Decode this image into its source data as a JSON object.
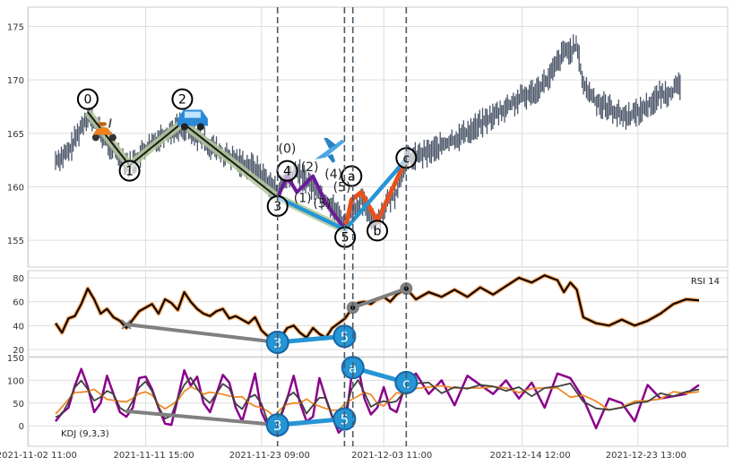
{
  "chart_data": {
    "type": "candlestick",
    "x_tick_labels": [
      "2021-11-02 11:00",
      "2021-11-11 15:00",
      "2021-11-23 09:00",
      "2021-12-03 11:00",
      "2021-12-14 12:00",
      "2021-12-23 13:00"
    ],
    "price_panel": {
      "yticks": [
        155,
        160,
        165,
        170,
        175
      ],
      "ylim": [
        152.5,
        176.8
      ],
      "price_path": [
        [
          0,
          162.5
        ],
        [
          0.02,
          163.2
        ],
        [
          0.05,
          166.8
        ],
        [
          0.08,
          164.2
        ],
        [
          0.115,
          162.0
        ],
        [
          0.14,
          163.5
        ],
        [
          0.165,
          164.8
        ],
        [
          0.197,
          165.8
        ],
        [
          0.23,
          164.3
        ],
        [
          0.26,
          163.0
        ],
        [
          0.29,
          162.2
        ],
        [
          0.31,
          161.8
        ],
        [
          0.33,
          160.5
        ],
        [
          0.345,
          159.5
        ],
        [
          0.36,
          160.8
        ],
        [
          0.375,
          161.5
        ],
        [
          0.4,
          160.0
        ],
        [
          0.42,
          158.8
        ],
        [
          0.435,
          157.8
        ],
        [
          0.45,
          156.4
        ],
        [
          0.46,
          157.8
        ],
        [
          0.475,
          158.7
        ],
        [
          0.49,
          157.2
        ],
        [
          0.5,
          156.8
        ],
        [
          0.515,
          158.5
        ],
        [
          0.53,
          159.5
        ],
        [
          0.545,
          162.6
        ],
        [
          0.57,
          163.0
        ],
        [
          0.6,
          163.8
        ],
        [
          0.625,
          164.6
        ],
        [
          0.65,
          165.5
        ],
        [
          0.68,
          166.6
        ],
        [
          0.71,
          167.8
        ],
        [
          0.74,
          168.8
        ],
        [
          0.765,
          170.0
        ],
        [
          0.79,
          172.6
        ],
        [
          0.81,
          173.0
        ],
        [
          0.815,
          171.5
        ],
        [
          0.82,
          169.5
        ],
        [
          0.84,
          168.0
        ],
        [
          0.86,
          167.4
        ],
        [
          0.88,
          166.6
        ],
        [
          0.9,
          166.8
        ],
        [
          0.92,
          167.6
        ],
        [
          0.94,
          168.6
        ],
        [
          0.96,
          169.0
        ],
        [
          0.97,
          169.4
        ]
      ],
      "waves": [
        {
          "name": "primary",
          "color": "#1a1a1a",
          "halo": "#b5c99a",
          "points": [
            [
              0.05,
              167.0
            ],
            [
              0.115,
              162.0
            ],
            [
              0.197,
              166.0
            ],
            [
              0.345,
              159.0
            ],
            [
              0.45,
              156.0
            ]
          ],
          "labels": [
            "0",
            "1",
            "2",
            "3",
            "5"
          ]
        },
        {
          "name": "sub-minor",
          "color": "#6a1b9a",
          "halo": "#ffffff",
          "points": [
            [
              0.345,
              159.0
            ],
            [
              0.36,
              161.0
            ],
            [
              0.375,
              159.5
            ],
            [
              0.4,
              161.0
            ],
            [
              0.42,
              158.5
            ],
            [
              0.45,
              156.0
            ]
          ],
          "labels": [
            "(0)",
            "(1)",
            "(2)",
            "(3)",
            "(4)",
            "(5)"
          ]
        },
        {
          "name": "abc",
          "color": "#e8501c",
          "halo": "#ffffff",
          "points": [
            [
              0.45,
              156.0
            ],
            [
              0.46,
              158.8
            ],
            [
              0.475,
              159.5
            ],
            [
              0.5,
              156.8
            ],
            [
              0.545,
              162.6
            ]
          ],
          "labels": [
            "a",
            "b",
            "c"
          ]
        },
        {
          "name": "channel",
          "color": "#2595d4",
          "points": [
            [
              0.345,
              159.0
            ],
            [
              0.45,
              156.0
            ],
            [
              0.545,
              162.6
            ]
          ]
        }
      ],
      "circle_labels": [
        {
          "text": "0",
          "x": 0.05,
          "y": 168.2
        },
        {
          "text": "1",
          "x": 0.115,
          "y": 161.5
        },
        {
          "text": "2",
          "x": 0.197,
          "y": 168.2
        },
        {
          "text": "3",
          "x": 0.345,
          "y": 158.2
        },
        {
          "text": "4",
          "x": 0.36,
          "y": 161.5
        },
        {
          "text": "a",
          "x": 0.46,
          "y": 161.0
        },
        {
          "text": "5",
          "x": 0.45,
          "y": 155.3
        },
        {
          "text": "b",
          "x": 0.5,
          "y": 155.9
        },
        {
          "text": "c",
          "x": 0.545,
          "y": 162.7
        }
      ],
      "paren_labels": [
        {
          "text": "(0)",
          "x": 0.36,
          "y": 163.6
        },
        {
          "text": "(2)",
          "x": 0.395,
          "y": 161.9
        },
        {
          "text": "(1)",
          "x": 0.384,
          "y": 159.0
        },
        {
          "text": "(3)",
          "x": 0.414,
          "y": 158.5
        },
        {
          "text": "(4)",
          "x": 0.432,
          "y": 161.2
        },
        {
          "text": "(5)",
          "x": 0.445,
          "y": 160.0
        }
      ],
      "icons": [
        {
          "name": "scooter-icon",
          "x": 0.075,
          "y": 165.2
        },
        {
          "name": "car-icon",
          "x": 0.213,
          "y": 166.2
        },
        {
          "name": "airplane-icon",
          "x": 0.425,
          "y": 163.4
        }
      ]
    },
    "vlines": [
      0.345,
      0.449,
      0.462,
      0.545
    ],
    "rsi_panel": {
      "label": "RSI 14",
      "yticks": [
        20,
        40,
        60,
        80
      ],
      "ylim": [
        14,
        86
      ],
      "path": [
        [
          0,
          42
        ],
        [
          0.01,
          34
        ],
        [
          0.02,
          46
        ],
        [
          0.03,
          48
        ],
        [
          0.04,
          58
        ],
        [
          0.05,
          71
        ],
        [
          0.06,
          62
        ],
        [
          0.07,
          50
        ],
        [
          0.08,
          54
        ],
        [
          0.09,
          47
        ],
        [
          0.1,
          44
        ],
        [
          0.11,
          38
        ],
        [
          0.12,
          45
        ],
        [
          0.13,
          52
        ],
        [
          0.14,
          55
        ],
        [
          0.15,
          58
        ],
        [
          0.16,
          50
        ],
        [
          0.17,
          62
        ],
        [
          0.18,
          59
        ],
        [
          0.19,
          53
        ],
        [
          0.2,
          68
        ],
        [
          0.21,
          60
        ],
        [
          0.22,
          54
        ],
        [
          0.23,
          50
        ],
        [
          0.24,
          48
        ],
        [
          0.25,
          52
        ],
        [
          0.26,
          54
        ],
        [
          0.27,
          46
        ],
        [
          0.28,
          48
        ],
        [
          0.29,
          45
        ],
        [
          0.3,
          42
        ],
        [
          0.31,
          47
        ],
        [
          0.32,
          36
        ],
        [
          0.33,
          31
        ],
        [
          0.34,
          34
        ],
        [
          0.35,
          30
        ],
        [
          0.36,
          38
        ],
        [
          0.37,
          40
        ],
        [
          0.38,
          34
        ],
        [
          0.39,
          30
        ],
        [
          0.4,
          38
        ],
        [
          0.41,
          33
        ],
        [
          0.42,
          30
        ],
        [
          0.43,
          38
        ],
        [
          0.44,
          42
        ],
        [
          0.45,
          46
        ],
        [
          0.46,
          54
        ],
        [
          0.47,
          59
        ],
        [
          0.48,
          60
        ],
        [
          0.49,
          58
        ],
        [
          0.5,
          62
        ],
        [
          0.51,
          64
        ],
        [
          0.52,
          60
        ],
        [
          0.53,
          66
        ],
        [
          0.545,
          71
        ],
        [
          0.56,
          62
        ],
        [
          0.58,
          68
        ],
        [
          0.6,
          64
        ],
        [
          0.62,
          70
        ],
        [
          0.64,
          64
        ],
        [
          0.66,
          72
        ],
        [
          0.68,
          66
        ],
        [
          0.7,
          73
        ],
        [
          0.72,
          80
        ],
        [
          0.74,
          76
        ],
        [
          0.76,
          82
        ],
        [
          0.78,
          78
        ],
        [
          0.79,
          68
        ],
        [
          0.8,
          76
        ],
        [
          0.81,
          70
        ],
        [
          0.82,
          47
        ],
        [
          0.84,
          42
        ],
        [
          0.86,
          40
        ],
        [
          0.88,
          45
        ],
        [
          0.9,
          40
        ],
        [
          0.92,
          44
        ],
        [
          0.94,
          50
        ],
        [
          0.96,
          58
        ],
        [
          0.98,
          62
        ],
        [
          1.0,
          61
        ]
      ],
      "lines": [
        {
          "color": "#808080",
          "points": [
            [
              0.11,
              41
            ],
            [
              0.345,
              26
            ],
            [
              0.449,
              31
            ]
          ]
        },
        {
          "color": "#2595d4",
          "points": [
            [
              0.345,
              26
            ],
            [
              0.449,
              31
            ]
          ]
        },
        {
          "color": "#808080",
          "points": [
            [
              0.462,
              55
            ],
            [
              0.545,
              71
            ]
          ]
        }
      ],
      "cross": [
        0.11,
        41
      ],
      "badges": [
        {
          "text": "3",
          "x": 0.345,
          "y": 26
        },
        {
          "text": "5",
          "x": 0.449,
          "y": 31
        }
      ],
      "dots": [
        {
          "x": 0.462,
          "y": 55
        },
        {
          "x": 0.545,
          "y": 71
        }
      ]
    },
    "kdj_panel": {
      "label": "KDJ (9,3,3)",
      "yticks": [
        0,
        50,
        100,
        150
      ],
      "ylim": [
        -45,
        152
      ],
      "k_color": "#404040",
      "d_color": "#f08a2a",
      "j_color": "#8b008b",
      "j_path": [
        [
          0,
          10
        ],
        [
          0.01,
          28
        ],
        [
          0.02,
          40
        ],
        [
          0.03,
          88
        ],
        [
          0.04,
          125
        ],
        [
          0.05,
          86
        ],
        [
          0.06,
          30
        ],
        [
          0.07,
          50
        ],
        [
          0.08,
          110
        ],
        [
          0.09,
          70
        ],
        [
          0.1,
          30
        ],
        [
          0.11,
          20
        ],
        [
          0.12,
          40
        ],
        [
          0.13,
          105
        ],
        [
          0.14,
          108
        ],
        [
          0.15,
          80
        ],
        [
          0.16,
          40
        ],
        [
          0.17,
          5
        ],
        [
          0.18,
          2
        ],
        [
          0.19,
          60
        ],
        [
          0.2,
          122
        ],
        [
          0.21,
          88
        ],
        [
          0.22,
          108
        ],
        [
          0.23,
          50
        ],
        [
          0.24,
          30
        ],
        [
          0.25,
          70
        ],
        [
          0.26,
          112
        ],
        [
          0.27,
          95
        ],
        [
          0.28,
          40
        ],
        [
          0.29,
          10
        ],
        [
          0.3,
          60
        ],
        [
          0.31,
          115
        ],
        [
          0.32,
          30
        ],
        [
          0.33,
          0
        ],
        [
          0.34,
          -5
        ],
        [
          0.35,
          20
        ],
        [
          0.36,
          60
        ],
        [
          0.37,
          110
        ],
        [
          0.38,
          50
        ],
        [
          0.39,
          10
        ],
        [
          0.4,
          20
        ],
        [
          0.41,
          105
        ],
        [
          0.42,
          60
        ],
        [
          0.43,
          20
        ],
        [
          0.44,
          -15
        ],
        [
          0.45,
          0
        ],
        [
          0.46,
          110
        ],
        [
          0.47,
          132
        ],
        [
          0.48,
          60
        ],
        [
          0.49,
          25
        ],
        [
          0.5,
          40
        ],
        [
          0.51,
          85
        ],
        [
          0.52,
          38
        ],
        [
          0.53,
          30
        ],
        [
          0.545,
          95
        ],
        [
          0.56,
          115
        ],
        [
          0.58,
          70
        ],
        [
          0.6,
          100
        ],
        [
          0.62,
          45
        ],
        [
          0.64,
          110
        ],
        [
          0.66,
          90
        ],
        [
          0.68,
          70
        ],
        [
          0.7,
          100
        ],
        [
          0.72,
          60
        ],
        [
          0.74,
          95
        ],
        [
          0.76,
          40
        ],
        [
          0.78,
          115
        ],
        [
          0.8,
          105
        ],
        [
          0.82,
          60
        ],
        [
          0.84,
          -5
        ],
        [
          0.86,
          60
        ],
        [
          0.88,
          50
        ],
        [
          0.9,
          10
        ],
        [
          0.92,
          90
        ],
        [
          0.94,
          60
        ],
        [
          0.96,
          65
        ],
        [
          0.98,
          70
        ],
        [
          1.0,
          90
        ]
      ],
      "lines": [
        {
          "color": "#808080",
          "points": [
            [
              0.11,
              32
            ],
            [
              0.345,
              2
            ],
            [
              0.449,
              15
            ]
          ]
        },
        {
          "color": "#2595d4",
          "points": [
            [
              0.345,
              2
            ],
            [
              0.449,
              15
            ]
          ]
        },
        {
          "color": "#2595d4",
          "points": [
            [
              0.462,
              128
            ],
            [
              0.545,
              95
            ]
          ]
        }
      ],
      "badges": [
        {
          "text": "3",
          "x": 0.345,
          "y": 2
        },
        {
          "text": "5",
          "x": 0.449,
          "y": 15
        },
        {
          "text": "a",
          "x": 0.462,
          "y": 128
        },
        {
          "text": "c",
          "x": 0.545,
          "y": 95
        }
      ]
    }
  }
}
